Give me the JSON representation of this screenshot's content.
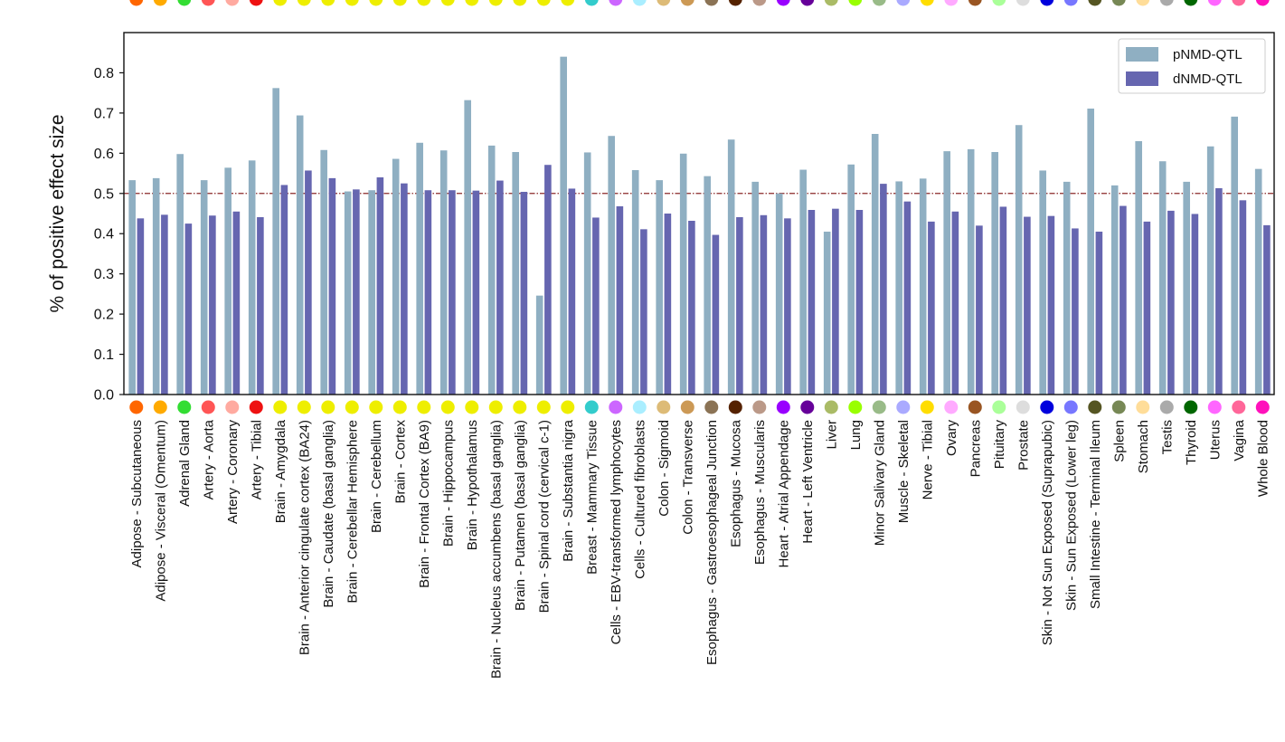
{
  "chart_data": {
    "type": "bar",
    "ylabel": "% of positive effect size",
    "xlabel": "",
    "ylim": [
      0,
      0.9
    ],
    "yticks": [
      "0.0",
      "0.1",
      "0.2",
      "0.3",
      "0.4",
      "0.5",
      "0.6",
      "0.7",
      "0.8"
    ],
    "reference_line": 0.5,
    "legend_position": "top-right",
    "categories": [
      "Adipose - Subcutaneous",
      "Adipose - Visceral (Omentum)",
      "Adrenal Gland",
      "Artery - Aorta",
      "Artery - Coronary",
      "Artery - Tibial",
      "Brain - Amygdala",
      "Brain - Anterior cingulate cortex (BA24)",
      "Brain - Caudate (basal ganglia)",
      "Brain - Cerebellar Hemisphere",
      "Brain - Cerebellum",
      "Brain - Cortex",
      "Brain - Frontal Cortex (BA9)",
      "Brain - Hippocampus",
      "Brain - Hypothalamus",
      "Brain - Nucleus accumbens (basal ganglia)",
      "Brain - Putamen (basal ganglia)",
      "Brain - Spinal cord (cervical c-1)",
      "Brain - Substantia nigra",
      "Breast - Mammary Tissue",
      "Cells - EBV-transformed lymphocytes",
      "Cells - Cultured fibroblasts",
      "Colon - Sigmoid",
      "Colon - Transverse",
      "Esophagus - Gastroesophageal Junction",
      "Esophagus - Mucosa",
      "Esophagus - Muscularis",
      "Heart - Atrial Appendage",
      "Heart - Left Ventricle",
      "Liver",
      "Lung",
      "Minor Salivary Gland",
      "Muscle - Skeletal",
      "Nerve - Tibial",
      "Ovary",
      "Pancreas",
      "Pituitary",
      "Prostate",
      "Skin - Not Sun Exposed (Suprapubic)",
      "Skin - Sun Exposed (Lower leg)",
      "Small Intestine - Terminal Ileum",
      "Spleen",
      "Stomach",
      "Testis",
      "Thyroid",
      "Uterus",
      "Vagina",
      "Whole Blood"
    ],
    "category_colors": [
      "#ff6600",
      "#ffaa00",
      "#33dd33",
      "#ff5555",
      "#ffaaa0",
      "#ee1111",
      "#eeee00",
      "#eeee00",
      "#eeee00",
      "#eeee00",
      "#eeee00",
      "#eeee00",
      "#eeee00",
      "#eeee00",
      "#eeee00",
      "#eeee00",
      "#eeee00",
      "#eeee00",
      "#eeee00",
      "#33cccc",
      "#cc66ff",
      "#aaeeff",
      "#ddbb77",
      "#cc9955",
      "#8b7355",
      "#552200",
      "#bb9988",
      "#9900ff",
      "#660099",
      "#aabb66",
      "#99ff00",
      "#99bb88",
      "#aaaaff",
      "#ffdd00",
      "#ffaaff",
      "#995522",
      "#aaff99",
      "#dddddd",
      "#0000dd",
      "#7777ff",
      "#555522",
      "#778855",
      "#ffdd99",
      "#aaaaaa",
      "#006600",
      "#ff66ff",
      "#ff6699",
      "#ff11bb"
    ],
    "series": [
      {
        "name": "pNMD-QTL",
        "color": "#8fafc2",
        "values": [
          0.533,
          0.538,
          0.598,
          0.533,
          0.564,
          0.582,
          0.762,
          0.694,
          0.608,
          0.505,
          0.508,
          0.586,
          0.626,
          0.607,
          0.732,
          0.619,
          0.603,
          0.246,
          0.84,
          0.602,
          0.643,
          0.558,
          0.533,
          0.599,
          0.543,
          0.634,
          0.529,
          0.5,
          0.559,
          0.405,
          0.572,
          0.648,
          0.53,
          0.537,
          0.605,
          0.61,
          0.603,
          0.67,
          0.557,
          0.529,
          0.711,
          0.52,
          0.63,
          0.58,
          0.529,
          0.617,
          0.691,
          0.561
        ]
      },
      {
        "name": "dNMD-QTL",
        "color": "#6666b0",
        "values": [
          0.438,
          0.447,
          0.425,
          0.445,
          0.455,
          0.441,
          0.521,
          0.557,
          0.538,
          0.51,
          0.54,
          0.525,
          0.508,
          0.508,
          0.507,
          0.532,
          0.504,
          0.571,
          0.512,
          0.44,
          0.468,
          0.411,
          0.45,
          0.432,
          0.397,
          0.441,
          0.446,
          0.438,
          0.459,
          0.462,
          0.459,
          0.524,
          0.48,
          0.43,
          0.455,
          0.42,
          0.467,
          0.442,
          0.444,
          0.413,
          0.405,
          0.469,
          0.43,
          0.457,
          0.449,
          0.513,
          0.483,
          0.421
        ]
      }
    ]
  }
}
